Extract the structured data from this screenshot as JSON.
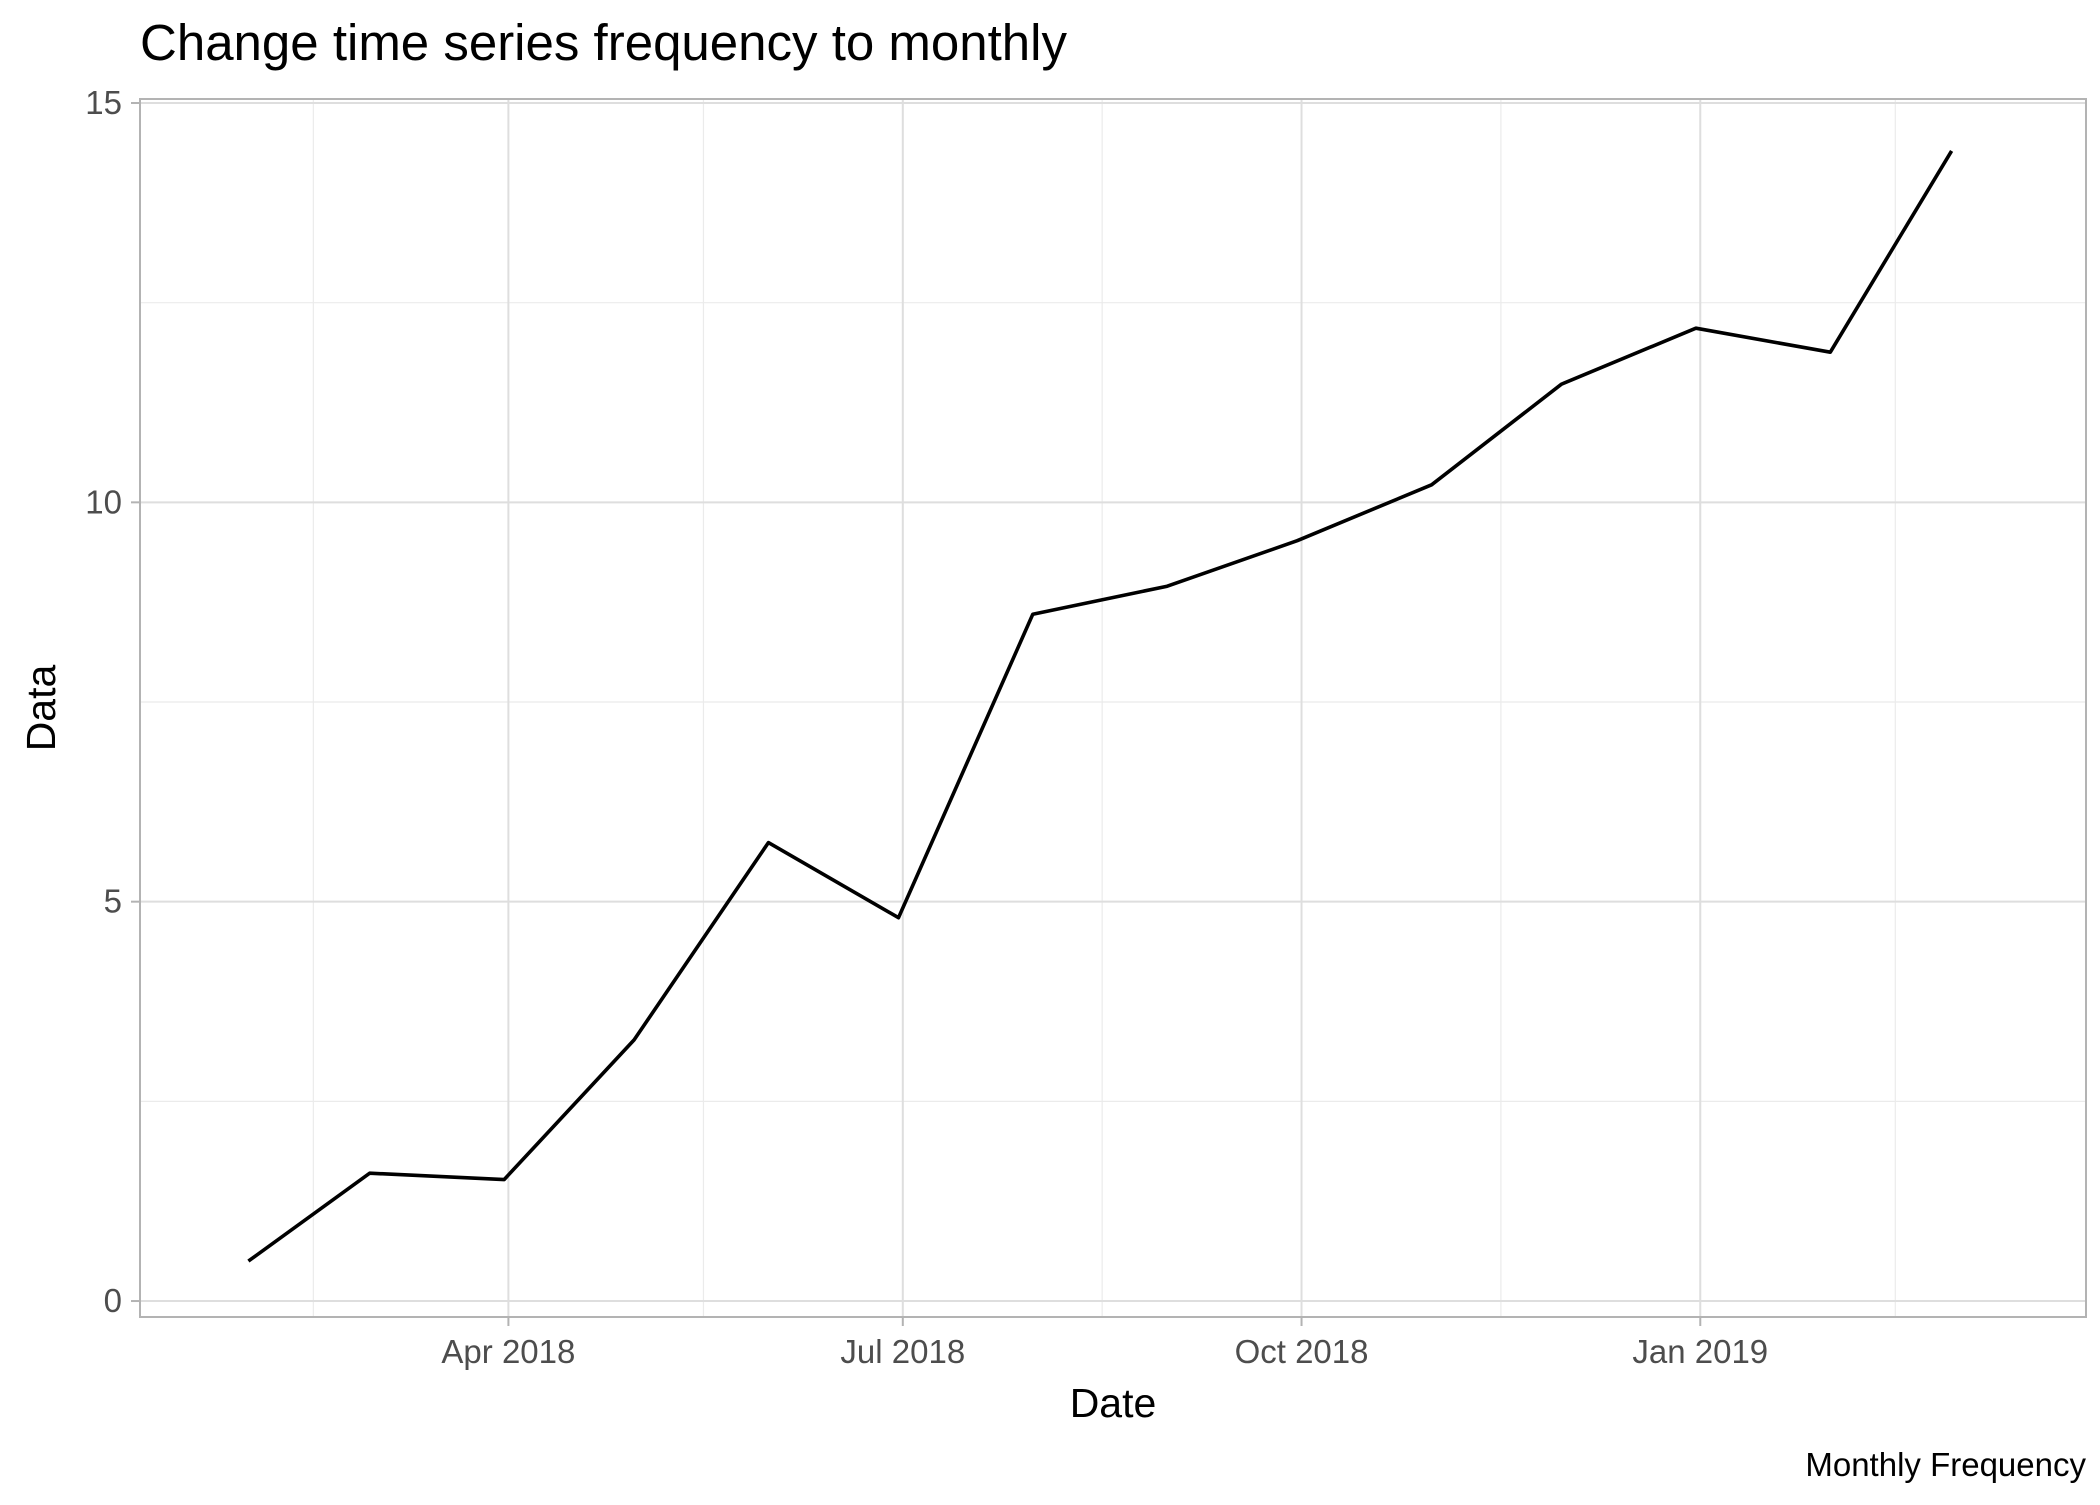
{
  "chart_data": {
    "type": "line",
    "title": "Change time series frequency to monthly",
    "xlabel": "Date",
    "ylabel": "Data",
    "caption": "Monthly Frequency",
    "x_type": "date",
    "xlim": [
      "2018-01-06",
      "2019-03-31"
    ],
    "ylim": [
      -0.2,
      15.05
    ],
    "x_ticks": [
      {
        "date": "2018-04-01",
        "label": "Apr 2018"
      },
      {
        "date": "2018-07-01",
        "label": "Jul 2018"
      },
      {
        "date": "2018-10-01",
        "label": "Oct 2018"
      },
      {
        "date": "2019-01-01",
        "label": "Jan 2019"
      }
    ],
    "x_minor_ticks": [
      "2018-02-15",
      "2018-05-16",
      "2018-08-16",
      "2018-11-16",
      "2019-02-15"
    ],
    "y_ticks": [
      0,
      5,
      10,
      15
    ],
    "y_minor_ticks": [
      2.5,
      7.5,
      12.5
    ],
    "grid": true,
    "series": [
      {
        "color": "#000000",
        "points": [
          {
            "x": "2018-01-31",
            "y": 0.5
          },
          {
            "x": "2018-02-28",
            "y": 1.6
          },
          {
            "x": "2018-03-31",
            "y": 1.52
          },
          {
            "x": "2018-04-30",
            "y": 3.27
          },
          {
            "x": "2018-05-31",
            "y": 5.74
          },
          {
            "x": "2018-06-30",
            "y": 4.8
          },
          {
            "x": "2018-07-31",
            "y": 8.6
          },
          {
            "x": "2018-08-31",
            "y": 8.95
          },
          {
            "x": "2018-09-30",
            "y": 9.52
          },
          {
            "x": "2018-10-31",
            "y": 10.22
          },
          {
            "x": "2018-11-30",
            "y": 11.48
          },
          {
            "x": "2018-12-31",
            "y": 12.18
          },
          {
            "x": "2019-01-31",
            "y": 11.88
          },
          {
            "x": "2019-02-28",
            "y": 14.4
          }
        ]
      }
    ]
  }
}
